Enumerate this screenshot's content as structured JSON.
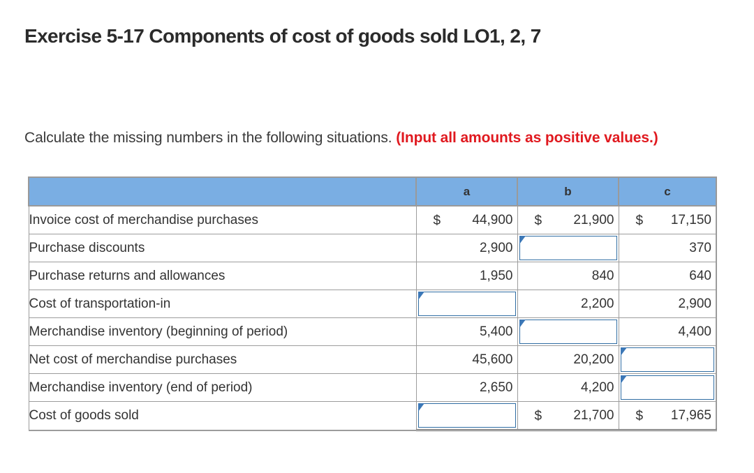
{
  "title": "Exercise 5-17 Components of cost of goods sold LO1, 2, 7",
  "instructions": {
    "text": "Calculate the missing numbers in the following situations.",
    "note": "(Input all amounts as positive values.)"
  },
  "table": {
    "columns": [
      "a",
      "b",
      "c"
    ],
    "rows": [
      {
        "label": "Invoice cost of merchandise purchases",
        "dollar": [
          true,
          true,
          true
        ],
        "values": [
          "44,900",
          "21,900",
          "17,150"
        ]
      },
      {
        "label": "Purchase discounts",
        "values": [
          "2,900",
          "",
          "370"
        ]
      },
      {
        "label": "Purchase returns and allowances",
        "values": [
          "1,950",
          "840",
          "640"
        ]
      },
      {
        "label": "Cost of transportation-in",
        "values": [
          "",
          "2,200",
          "2,900"
        ]
      },
      {
        "label": "Merchandise inventory (beginning of period)",
        "values": [
          "5,400",
          "",
          "4,400"
        ]
      },
      {
        "label": "Net cost of merchandise purchases",
        "values": [
          "45,600",
          "20,200",
          ""
        ]
      },
      {
        "label": "Merchandise inventory (end of period)",
        "values": [
          "2,650",
          "4,200",
          ""
        ]
      },
      {
        "label": "Cost of goods sold",
        "dollar": [
          false,
          true,
          true
        ],
        "values": [
          "",
          "21,700",
          "17,965"
        ]
      }
    ]
  }
}
